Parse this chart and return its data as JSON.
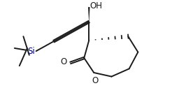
{
  "background_color": "#ffffff",
  "line_color": "#1a1a1a",
  "line_width": 1.4,
  "figsize": [
    2.66,
    1.46
  ],
  "dpi": 100,
  "OH_label": "OH",
  "O_label": "O",
  "Si_label": "Si",
  "si_color": "#00008B"
}
